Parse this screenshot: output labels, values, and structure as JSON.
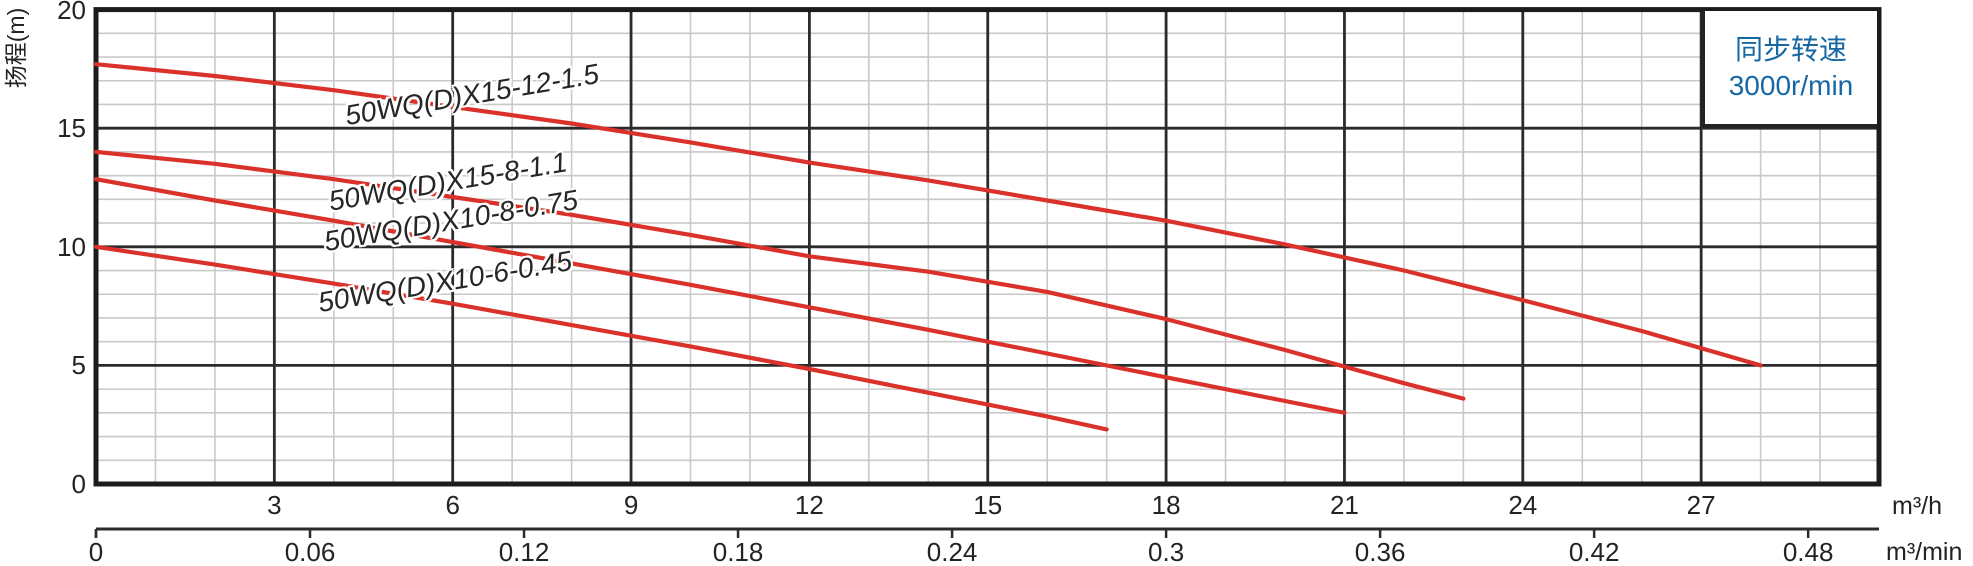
{
  "legend": {
    "line1": "同步转速",
    "line2": "3000r/min",
    "position": "top-right",
    "text_color": "#1668a5"
  },
  "y_axis": {
    "title": "扬程(m)",
    "tick_labels": [
      "20",
      "15",
      "10",
      "5",
      "0"
    ],
    "tick_values": [
      20,
      15,
      10,
      5,
      0
    ],
    "min": 0,
    "max": 20,
    "major_step": 5,
    "minor_step": 1
  },
  "x_axis_primary": {
    "unit": "m³/h",
    "tick_values": [
      3,
      6,
      9,
      12,
      15,
      18,
      21,
      24,
      27
    ],
    "min": 0,
    "max": 30,
    "major_step": 3,
    "minor_step": 1
  },
  "x_axis_secondary": {
    "unit": "m³/min",
    "tick_labels": [
      "0",
      "0.06",
      "0.12",
      "0.18",
      "0.24",
      "0.3",
      "0.36",
      "0.42",
      "0.48"
    ],
    "tick_values": [
      0,
      0.06,
      0.12,
      0.18,
      0.24,
      0.3,
      0.36,
      0.42,
      0.48
    ],
    "step": 0.06
  },
  "colors": {
    "curve": "#da322a",
    "grid_major": "#2b2b2b",
    "grid_minor": "#c9c9c9",
    "border": "#1c1c1a",
    "text": "#232323",
    "legend_text": "#1668a5",
    "background": "#ffffff"
  },
  "chart_data": {
    "type": "line",
    "title": "",
    "xlabel_primary": "m³/h",
    "xlabel_secondary": "m³/min",
    "ylabel": "扬程(m)",
    "xlim": [
      0,
      30
    ],
    "ylim": [
      0,
      20
    ],
    "grid": "major-and-minor",
    "legend_note": "同步转速 3000r/min",
    "series": [
      {
        "name": "50WQ(D)X15-12-1.5",
        "label": "50WQ(D)X15-12-1.5",
        "points": [
          [
            0,
            17.7
          ],
          [
            2,
            17.2
          ],
          [
            4,
            16.6
          ],
          [
            6,
            15.9
          ],
          [
            8,
            15.2
          ],
          [
            10,
            14.4
          ],
          [
            12,
            13.55
          ],
          [
            14,
            12.8
          ],
          [
            16,
            11.95
          ],
          [
            18,
            11.1
          ],
          [
            20,
            10.1
          ],
          [
            22,
            9.0
          ],
          [
            24,
            7.75
          ],
          [
            26,
            6.45
          ],
          [
            28,
            5.0
          ]
        ]
      },
      {
        "name": "50WQ(D)X15-8-1.1",
        "label": "50WQ(D)X15-8-1.1",
        "points": [
          [
            0,
            14.0
          ],
          [
            2,
            13.5
          ],
          [
            4,
            12.85
          ],
          [
            6,
            12.1
          ],
          [
            8,
            11.35
          ],
          [
            10,
            10.5
          ],
          [
            12,
            9.6
          ],
          [
            14,
            8.95
          ],
          [
            16,
            8.1
          ],
          [
            18,
            6.95
          ],
          [
            20,
            5.65
          ],
          [
            22,
            4.25
          ],
          [
            23,
            3.6
          ]
        ]
      },
      {
        "name": "50WQ(D)X10-8-0.75",
        "label": "50WQ(D)X10-8-0.75",
        "points": [
          [
            0,
            12.85
          ],
          [
            2,
            11.95
          ],
          [
            4,
            11.1
          ],
          [
            6,
            10.2
          ],
          [
            8,
            9.3
          ],
          [
            10,
            8.4
          ],
          [
            12,
            7.45
          ],
          [
            14,
            6.5
          ],
          [
            16,
            5.5
          ],
          [
            18,
            4.5
          ],
          [
            20,
            3.5
          ],
          [
            21,
            3.0
          ]
        ]
      },
      {
        "name": "50WQ(D)X10-6-0.45",
        "label": "50WQ(D)X10-6-0.45",
        "points": [
          [
            0,
            10.0
          ],
          [
            2,
            9.25
          ],
          [
            4,
            8.45
          ],
          [
            6,
            7.6
          ],
          [
            8,
            6.7
          ],
          [
            10,
            5.8
          ],
          [
            12,
            4.85
          ],
          [
            14,
            3.85
          ],
          [
            16,
            2.85
          ],
          [
            17,
            2.3
          ]
        ]
      }
    ]
  }
}
